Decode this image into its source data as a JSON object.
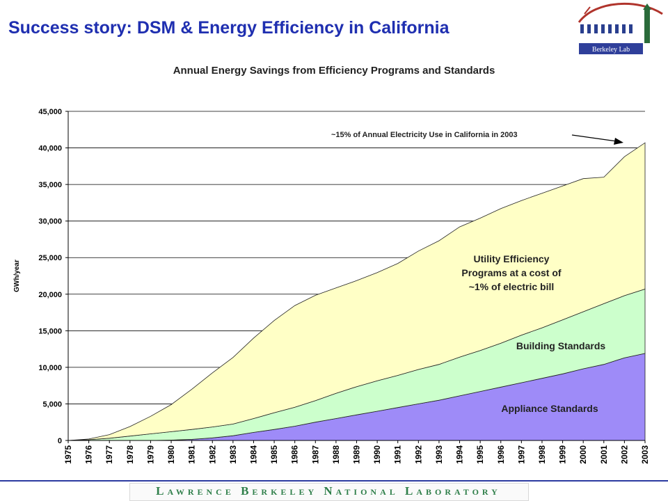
{
  "slide": {
    "title": "Success story: DSM & Energy Efficiency in California",
    "logo_text": "Berkeley Lab",
    "footer_text": "Lawrence Berkeley National Laboratory"
  },
  "colors": {
    "title": "#1f2fb0",
    "appliance": "#9e8bf8",
    "building": "#ccffcc",
    "utility": "#ffffc6",
    "footer_text": "#2f7f4a"
  },
  "chart_data": {
    "type": "area",
    "stacked": true,
    "title": "Annual Energy Savings from Efficiency Programs and Standards",
    "xlabel": "",
    "ylabel": "GWh/year",
    "ylim": [
      0,
      45000
    ],
    "yticks": [
      0,
      5000,
      10000,
      15000,
      20000,
      25000,
      30000,
      35000,
      40000,
      45000
    ],
    "ytick_labels": [
      "0",
      "5,000",
      "10,000",
      "15,000",
      "20,000",
      "25,000",
      "30,000",
      "35,000",
      "40,000",
      "45,000"
    ],
    "grid": true,
    "x": [
      "1975",
      "1976",
      "1977",
      "1978",
      "1979",
      "1980",
      "1981",
      "1982",
      "1983",
      "1984",
      "1985",
      "1986",
      "1987",
      "1988",
      "1989",
      "1990",
      "1991",
      "1992",
      "1993",
      "1994",
      "1995",
      "1996",
      "1997",
      "1998",
      "1999",
      "2000",
      "2001",
      "2002",
      "2003"
    ],
    "series": [
      {
        "name": "Appliance Standards",
        "values": [
          0,
          0,
          0,
          0,
          0,
          50,
          150,
          350,
          650,
          1100,
          1500,
          1950,
          2500,
          3000,
          3500,
          4000,
          4500,
          5000,
          5500,
          6100,
          6700,
          7300,
          7900,
          8500,
          9100,
          9800,
          10400,
          11300,
          11900
        ]
      },
      {
        "name": "Building Standards",
        "values": [
          0,
          100,
          300,
          600,
          900,
          1150,
          1350,
          1500,
          1600,
          1900,
          2300,
          2600,
          2950,
          3450,
          3850,
          4150,
          4400,
          4700,
          4900,
          5300,
          5600,
          6000,
          6500,
          6900,
          7400,
          7800,
          8300,
          8500,
          8800
        ]
      },
      {
        "name": "Utility Efficiency Programs at a cost of ~1% of electric bill",
        "values": [
          0,
          100,
          500,
          1300,
          2400,
          3700,
          5500,
          7400,
          9100,
          11000,
          12600,
          13900,
          14400,
          14400,
          14500,
          14800,
          15300,
          16200,
          16900,
          17800,
          18100,
          18400,
          18400,
          18400,
          18300,
          18200,
          17300,
          19000,
          20000
        ]
      }
    ],
    "series_label_lines": [
      [
        "Appliance Standards"
      ],
      [
        "Building Standards"
      ],
      [
        "Utility Efficiency",
        "Programs at a cost of",
        "~1% of electric bill"
      ]
    ],
    "annotation": "~15% of Annual Electricity Use in California in 2003"
  }
}
